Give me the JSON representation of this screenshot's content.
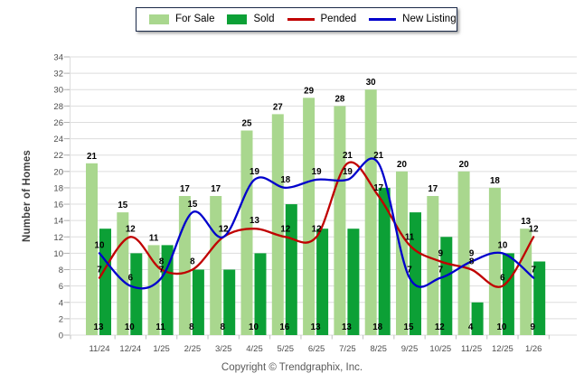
{
  "chart_data": {
    "type": "bar+line",
    "title": "",
    "categories": [
      "11/24",
      "12/24",
      "1/25",
      "2/25",
      "3/25",
      "4/25",
      "5/25",
      "6/25",
      "7/25",
      "8/25",
      "9/25",
      "10/25",
      "11/25",
      "12/25",
      "1/26"
    ],
    "series": [
      {
        "name": "For Sale",
        "type": "bar",
        "color": "#A9D78E",
        "values": [
          21,
          15,
          11,
          17,
          17,
          25,
          27,
          29,
          28,
          30,
          20,
          17,
          20,
          18,
          13
        ]
      },
      {
        "name": "Sold",
        "type": "bar",
        "color": "#0CA036",
        "values": [
          13,
          10,
          11,
          8,
          8,
          10,
          16,
          13,
          13,
          18,
          15,
          12,
          4,
          10,
          9
        ]
      },
      {
        "name": "Pended",
        "type": "line",
        "color": "#C00000",
        "values": [
          7,
          12,
          8,
          8,
          12,
          13,
          12,
          12,
          21,
          17,
          11,
          9,
          8,
          6,
          12
        ]
      },
      {
        "name": "New Listing",
        "type": "line",
        "color": "#0000CC",
        "values": [
          10,
          6,
          7,
          15,
          12,
          19,
          18,
          19,
          19,
          21,
          7,
          7,
          9,
          10,
          7
        ]
      }
    ],
    "xlabel": "",
    "ylabel": "Number of Homes",
    "ylim": [
      0,
      34
    ],
    "ytick_step": 2,
    "grid": true,
    "legend_position": "top-center",
    "grid_color": "#DDDDDD",
    "axis_text_color": "#4d4d4d",
    "value_label_color": "#000000"
  },
  "footer": {
    "copyright": "Copyright © Trendgraphix, Inc."
  }
}
